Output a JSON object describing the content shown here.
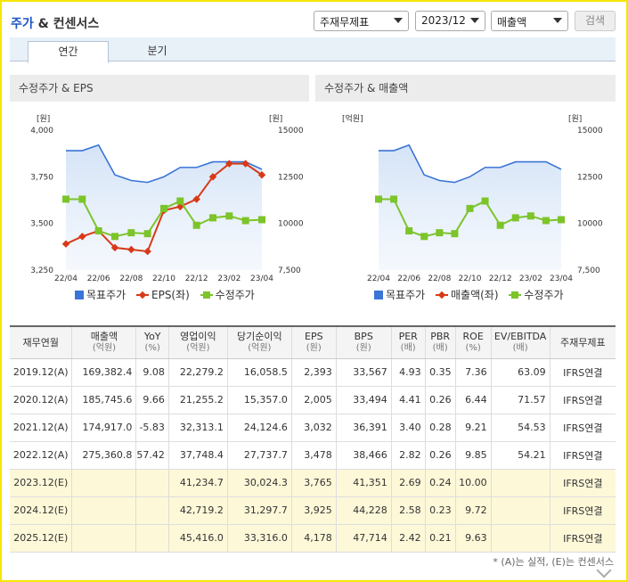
{
  "header": {
    "title_part1": "주가",
    "title_part2": " & 컨센서스",
    "select_statement": "주재무제표",
    "select_period": "2023/12",
    "select_metric": "매출액",
    "search_label": "검색"
  },
  "tabs": [
    {
      "label": "연간",
      "active": true
    },
    {
      "label": "분기",
      "active": false
    }
  ],
  "panels": {
    "left_title": "수정주가 & EPS",
    "right_title": "수정주가 & 매출액"
  },
  "legends": {
    "left": [
      "목표주가",
      "EPS(좌)",
      "수정주가"
    ],
    "right": [
      "목표주가",
      "매출액(좌)",
      "수정주가"
    ]
  },
  "chart_data": [
    {
      "type": "line",
      "title": "수정주가 & EPS",
      "categories": [
        "22/04",
        "22/05",
        "22/06",
        "22/07",
        "22/08",
        "22/09",
        "22/10",
        "22/11",
        "22/12",
        "23/01",
        "23/02",
        "23/03",
        "23/04"
      ],
      "x_tick_labels": [
        "22/04",
        "22/06",
        "22/08",
        "22/10",
        "22/12",
        "23/02",
        "23/04"
      ],
      "left_axis": {
        "unit": "[원]",
        "ylim": [
          3250,
          4000
        ],
        "ticks": [
          "4,000",
          "3,750",
          "3,500",
          "3,250"
        ]
      },
      "right_axis": {
        "unit": "[원]",
        "ylim": [
          7500,
          15000
        ],
        "ticks": [
          "15000",
          "12500",
          "10000",
          "7,500"
        ]
      },
      "series": [
        {
          "name": "목표주가",
          "axis": "right",
          "kind": "area",
          "color": "#3a74d6",
          "values": [
            13900,
            13900,
            14200,
            12600,
            12300,
            12200,
            12500,
            13000,
            13000,
            13300,
            13300,
            13300,
            12900
          ]
        },
        {
          "name": "EPS(좌)",
          "axis": "left",
          "kind": "line",
          "color": "#d83a18",
          "marker": "diamond",
          "values": [
            3390,
            3430,
            3460,
            3370,
            3360,
            3350,
            3570,
            3590,
            3630,
            3750,
            3820,
            3820,
            3760
          ]
        },
        {
          "name": "수정주가",
          "axis": "right",
          "kind": "line",
          "color": "#7cc42a",
          "marker": "square",
          "values": [
            11300,
            11300,
            9600,
            9300,
            9500,
            9450,
            10800,
            11200,
            9900,
            10300,
            10400,
            10150,
            10200
          ]
        }
      ]
    },
    {
      "type": "line",
      "title": "수정주가 & 매출액",
      "categories": [
        "22/04",
        "22/05",
        "22/06",
        "22/07",
        "22/08",
        "22/09",
        "22/10",
        "22/11",
        "22/12",
        "23/01",
        "23/02",
        "23/03",
        "23/04"
      ],
      "x_tick_labels": [
        "22/04",
        "22/06",
        "22/08",
        "22/10",
        "22/12",
        "23/02",
        "23/04"
      ],
      "left_axis": {
        "unit": "[억원]",
        "ticks": []
      },
      "right_axis": {
        "unit": "[원]",
        "ylim": [
          7500,
          15000
        ],
        "ticks": [
          "15000",
          "12500",
          "10000",
          "7,500"
        ]
      },
      "series": [
        {
          "name": "목표주가",
          "axis": "right",
          "kind": "area",
          "color": "#3a74d6",
          "values": [
            13900,
            13900,
            14200,
            12600,
            12300,
            12200,
            12500,
            13000,
            13000,
            13300,
            13300,
            13300,
            12900
          ]
        },
        {
          "name": "수정주가",
          "axis": "right",
          "kind": "line",
          "color": "#7cc42a",
          "marker": "square",
          "values": [
            11300,
            11300,
            9600,
            9300,
            9500,
            9450,
            10800,
            11200,
            9900,
            10300,
            10400,
            10150,
            10200
          ]
        }
      ]
    }
  ],
  "table": {
    "headers": [
      {
        "main": "재무연월",
        "sub": ""
      },
      {
        "main": "매출액",
        "sub": "(억원)"
      },
      {
        "main": "YoY",
        "sub": "(%)"
      },
      {
        "main": "영업이익",
        "sub": "(억원)"
      },
      {
        "main": "당기순이익",
        "sub": "(억원)"
      },
      {
        "main": "EPS",
        "sub": "(원)"
      },
      {
        "main": "BPS",
        "sub": "(원)"
      },
      {
        "main": "PER",
        "sub": "(배)"
      },
      {
        "main": "PBR",
        "sub": "(배)"
      },
      {
        "main": "ROE",
        "sub": "(%)"
      },
      {
        "main": "EV/EBITDA",
        "sub": "(배)"
      },
      {
        "main": "주재무제표",
        "sub": ""
      }
    ],
    "rows": [
      {
        "estimate": false,
        "cells": [
          "2019.12(A)",
          "169,382.4",
          "9.08",
          "22,279.2",
          "16,058.5",
          "2,393",
          "33,567",
          "4.93",
          "0.35",
          "7.36",
          "63.09",
          "IFRS연결"
        ]
      },
      {
        "estimate": false,
        "cells": [
          "2020.12(A)",
          "185,745.6",
          "9.66",
          "21,255.2",
          "15,357.0",
          "2,005",
          "33,494",
          "4.41",
          "0.26",
          "6.44",
          "71.57",
          "IFRS연결"
        ]
      },
      {
        "estimate": false,
        "cells": [
          "2021.12(A)",
          "174,917.0",
          "-5.83",
          "32,313.1",
          "24,124.6",
          "3,032",
          "36,391",
          "3.40",
          "0.28",
          "9.21",
          "54.53",
          "IFRS연결"
        ]
      },
      {
        "estimate": false,
        "cells": [
          "2022.12(A)",
          "275,360.8",
          "57.42",
          "37,748.4",
          "27,737.7",
          "3,478",
          "38,466",
          "2.82",
          "0.26",
          "9.85",
          "54.21",
          "IFRS연결"
        ]
      },
      {
        "estimate": true,
        "cells": [
          "2023.12(E)",
          "",
          "",
          "41,234.7",
          "30,024.3",
          "3,765",
          "41,351",
          "2.69",
          "0.24",
          "10.00",
          "",
          "IFRS연결"
        ]
      },
      {
        "estimate": true,
        "cells": [
          "2024.12(E)",
          "",
          "",
          "42,719.2",
          "31,297.7",
          "3,925",
          "44,228",
          "2.58",
          "0.23",
          "9.72",
          "",
          "IFRS연결"
        ]
      },
      {
        "estimate": true,
        "cells": [
          "2025.12(E)",
          "",
          "",
          "45,416.0",
          "33,316.0",
          "4,178",
          "47,714",
          "2.42",
          "0.21",
          "9.63",
          "",
          "IFRS연결"
        ]
      }
    ]
  },
  "footnote": "* (A)는 실적, (E)는 컨센서스"
}
